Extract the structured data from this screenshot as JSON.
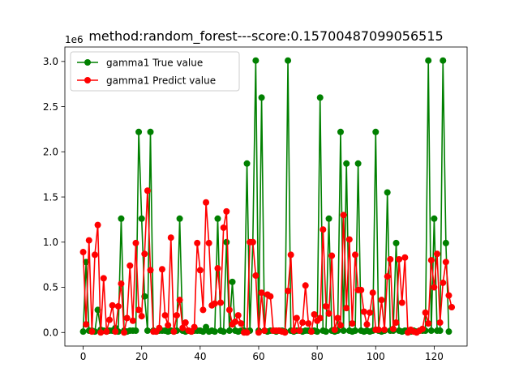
{
  "figure": {
    "background": "#ffffff"
  },
  "chart_data": {
    "type": "line",
    "title": "method:random_forest---score:0.15700487099056515",
    "xlabel": "",
    "ylabel": "",
    "y_scale_label": "1e6",
    "xlim": [
      -6.25,
      131.25
    ],
    "ylim": [
      -0.15,
      3.16
    ],
    "xticks": [
      0,
      20,
      40,
      60,
      80,
      100,
      120
    ],
    "yticks": [
      0.0,
      0.5,
      1.0,
      1.5,
      2.0,
      2.5,
      3.0
    ],
    "ytick_labels": [
      "0.0",
      "0.5",
      "1.0",
      "1.5",
      "2.0",
      "2.5",
      "3.0"
    ],
    "grid": false,
    "legend_position": "top-left",
    "series": [
      {
        "name": "gamma1 True value",
        "color": "#008000",
        "values": [
          0.01,
          0.78,
          0.02,
          0.02,
          0.01,
          0.25,
          0.03,
          0.02,
          0.01,
          0.02,
          0.02,
          0.05,
          0.01,
          1.26,
          0.02,
          0.01,
          0.02,
          0.02,
          0.02,
          2.22,
          1.26,
          0.4,
          0.02,
          2.22,
          0.02,
          0.01,
          0.02,
          0.02,
          0.02,
          0.01,
          0.02,
          0.01,
          0.02,
          1.26,
          0.02,
          0.01,
          0.02,
          0.01,
          0.02,
          0.02,
          0.02,
          0.01,
          0.06,
          0.01,
          0.02,
          0.01,
          1.26,
          0.02,
          0.01,
          1.0,
          0.02,
          0.56,
          0.02,
          0.01,
          0.02,
          0.02,
          1.87,
          0.02,
          1.0,
          3.01,
          0.02,
          2.6,
          0.02,
          0.01,
          0.02,
          0.02,
          0.01,
          0.02,
          0.02,
          0.01,
          3.01,
          0.02,
          0.01,
          0.02,
          0.02,
          0.01,
          0.02,
          0.02,
          0.01,
          0.02,
          0.01,
          2.6,
          0.02,
          0.01,
          1.26,
          0.02,
          0.01,
          0.02,
          2.22,
          0.02,
          1.87,
          0.02,
          0.01,
          0.02,
          1.87,
          0.02,
          0.01,
          0.02,
          0.01,
          0.02,
          2.22,
          0.02,
          0.01,
          0.02,
          1.55,
          0.02,
          0.02,
          0.99,
          0.02,
          0.01,
          0.02,
          0.02,
          0.01,
          0.02,
          0.01,
          0.02,
          0.02,
          0.02,
          3.01,
          0.02,
          1.26,
          0.02,
          0.02,
          3.01,
          0.99,
          0.01
        ]
      },
      {
        "name": "gamma1 Predict value",
        "color": "#ff0000",
        "values": [
          0.89,
          0.09,
          1.02,
          0.01,
          0.86,
          1.19,
          0.0,
          0.6,
          0.01,
          0.14,
          0.3,
          0.01,
          0.29,
          0.54,
          0.0,
          0.16,
          0.74,
          0.13,
          0.99,
          0.25,
          0.18,
          0.87,
          1.57,
          0.69,
          0.01,
          0.01,
          0.05,
          0.7,
          0.19,
          0.08,
          1.05,
          0.01,
          0.19,
          0.36,
          0.05,
          0.11,
          0.02,
          0.01,
          0.06,
          0.99,
          0.69,
          0.25,
          1.44,
          0.99,
          0.3,
          0.32,
          0.71,
          0.33,
          1.16,
          1.34,
          0.25,
          0.09,
          0.12,
          0.19,
          0.1,
          0.0,
          0.0,
          1.0,
          1.0,
          0.63,
          0.0,
          0.44,
          0.02,
          0.42,
          0.4,
          0.02,
          0.02,
          0.02,
          0.01,
          0.0,
          0.46,
          0.86,
          0.02,
          0.16,
          0.02,
          0.11,
          0.52,
          0.1,
          0.01,
          0.2,
          0.13,
          0.16,
          1.14,
          0.29,
          0.21,
          0.85,
          0.03,
          0.16,
          0.08,
          1.3,
          0.27,
          1.03,
          0.1,
          0.86,
          0.47,
          0.47,
          0.23,
          0.09,
          0.22,
          0.44,
          0.03,
          0.03,
          0.36,
          0.03,
          0.62,
          0.81,
          0.04,
          0.11,
          0.81,
          0.33,
          0.83,
          0.0,
          0.03,
          0.01,
          0.0,
          0.02,
          0.04,
          0.22,
          0.1,
          0.8,
          0.5,
          0.87,
          0.11,
          0.55,
          0.78,
          0.41,
          0.28
        ]
      }
    ]
  }
}
